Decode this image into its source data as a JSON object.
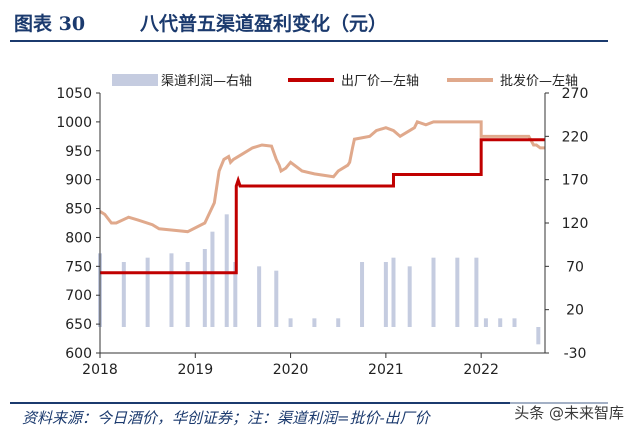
{
  "header": {
    "figure_label": "图表 30",
    "figure_title": "八代普五渠道盈利变化（元）"
  },
  "footer": {
    "source": "资料来源：今日酒价，华创证券；注：渠道利润=批价-出厂价",
    "watermark": "头条 @未来智库"
  },
  "colors": {
    "title": "#1b3a6e",
    "bars": "#c5cce0",
    "ex_factory": "#c00000",
    "wholesale": "#e0a98c"
  },
  "chart_data": {
    "type": "line",
    "title": "八代普五渠道盈利变化（元）",
    "xlabel": "",
    "ylabel": "",
    "x_ticks": [
      "2018",
      "2019",
      "2020",
      "2021",
      "2022"
    ],
    "xlim": [
      2018.0,
      2022.67
    ],
    "ylim": [
      600,
      1050
    ],
    "y_ticks": [
      600,
      650,
      700,
      750,
      800,
      850,
      900,
      950,
      1000,
      1050
    ],
    "y2lim": [
      -30,
      270
    ],
    "y2_ticks": [
      -30,
      20,
      70,
      120,
      170,
      220,
      270
    ],
    "grid": false,
    "legend_position": "top",
    "series": [
      {
        "name": "渠道利润—右轴",
        "type": "bar",
        "axis": "right",
        "x": [
          2018.0,
          2018.25,
          2018.5,
          2018.75,
          2018.92,
          2019.1,
          2019.18,
          2019.33,
          2019.42,
          2019.67,
          2019.85,
          2020.0,
          2020.25,
          2020.5,
          2020.75,
          2021.0,
          2021.08,
          2021.25,
          2021.5,
          2021.75,
          2021.95,
          2022.05,
          2022.2,
          2022.35,
          2022.5,
          2022.6
        ],
        "values": [
          85,
          75,
          80,
          85,
          75,
          90,
          110,
          130,
          75,
          70,
          65,
          10,
          10,
          10,
          75,
          75,
          80,
          70,
          80,
          80,
          80,
          10,
          10,
          10,
          0,
          -20
        ]
      },
      {
        "name": "出厂价—左轴",
        "type": "line",
        "axis": "left",
        "x": [
          2018.0,
          2019.43,
          2019.43,
          2019.45,
          2019.47,
          2019.49,
          2020.0,
          2021.08,
          2021.08,
          2022.0,
          2022.0,
          2022.67
        ],
        "values": [
          739,
          739,
          889,
          899,
          889,
          889,
          889,
          889,
          909,
          909,
          969,
          969
        ]
      },
      {
        "name": "批发价—左轴",
        "type": "line",
        "axis": "left",
        "x": [
          2018.0,
          2018.05,
          2018.12,
          2018.17,
          2018.3,
          2018.4,
          2018.55,
          2018.62,
          2018.8,
          2018.92,
          2019.1,
          2019.2,
          2019.25,
          2019.3,
          2019.35,
          2019.37,
          2019.4,
          2019.5,
          2019.6,
          2019.7,
          2019.8,
          2019.85,
          2019.88,
          2019.9,
          2019.95,
          2020.0,
          2020.08,
          2020.12,
          2020.25,
          2020.45,
          2020.5,
          2020.6,
          2020.62,
          2020.65,
          2020.67,
          2020.83,
          2020.9,
          2021.0,
          2021.08,
          2021.15,
          2021.25,
          2021.3,
          2021.33,
          2021.42,
          2021.5,
          2021.62,
          2021.75,
          2022.0,
          2022.0,
          2022.17,
          2022.33,
          2022.5,
          2022.55,
          2022.58,
          2022.62,
          2022.67
        ],
        "values": [
          845,
          840,
          825,
          825,
          835,
          830,
          822,
          815,
          812,
          810,
          825,
          860,
          915,
          935,
          940,
          930,
          935,
          945,
          955,
          960,
          958,
          935,
          925,
          915,
          920,
          930,
          920,
          915,
          910,
          905,
          915,
          925,
          930,
          955,
          970,
          975,
          985,
          990,
          985,
          975,
          985,
          990,
          1000,
          995,
          1000,
          1000,
          1000,
          1000,
          975,
          975,
          975,
          975,
          960,
          960,
          955,
          955
        ]
      }
    ]
  }
}
